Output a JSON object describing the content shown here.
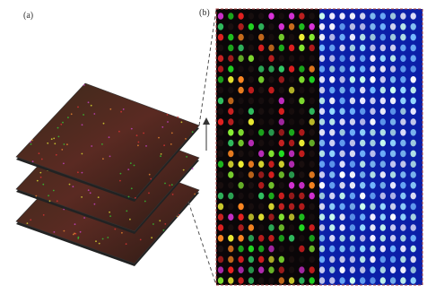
{
  "labels": [
    "(a)",
    "(b)"
  ]
}
